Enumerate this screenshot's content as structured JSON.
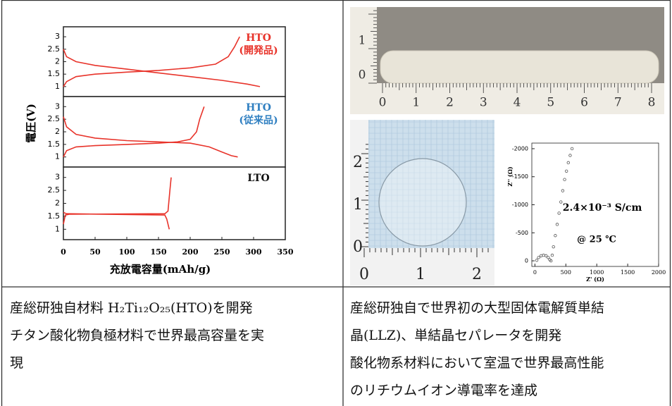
{
  "chart_data": [
    {
      "type": "line",
      "xlim": [
        0,
        350
      ],
      "ylim": [
        0.6,
        3.4
      ],
      "yticks": [
        1,
        1.5,
        2,
        2.5,
        3
      ],
      "annotation": [
        "HTO",
        "(開発品)"
      ],
      "annotation_color": "#e8332a",
      "series": [
        {
          "color": "#e8332a",
          "x": [
            0,
            5,
            20,
            50,
            100,
            150,
            200,
            240,
            260,
            270,
            278
          ],
          "values": [
            1.0,
            1.2,
            1.4,
            1.5,
            1.58,
            1.65,
            1.75,
            1.9,
            2.2,
            2.6,
            3.0
          ]
        },
        {
          "color": "#e8332a",
          "x": [
            0,
            5,
            20,
            50,
            100,
            150,
            200,
            250,
            290,
            310
          ],
          "values": [
            2.5,
            2.2,
            2.0,
            1.85,
            1.7,
            1.55,
            1.4,
            1.25,
            1.1,
            1.0
          ]
        }
      ]
    },
    {
      "type": "line",
      "xlim": [
        0,
        350
      ],
      "ylim": [
        0.6,
        3.4
      ],
      "yticks": [
        1,
        1.5,
        2,
        2.5,
        3
      ],
      "ylabel": "電圧(V)",
      "annotation": [
        "HTO",
        "(従来品)"
      ],
      "annotation_color": "#2f7fc1",
      "series": [
        {
          "color": "#e8332a",
          "x": [
            0,
            5,
            20,
            50,
            100,
            150,
            180,
            200,
            210,
            215,
            222
          ],
          "values": [
            1.0,
            1.25,
            1.4,
            1.45,
            1.5,
            1.55,
            1.6,
            1.7,
            2.0,
            2.5,
            3.0
          ]
        },
        {
          "color": "#e8332a",
          "x": [
            0,
            5,
            20,
            50,
            100,
            150,
            200,
            230,
            250,
            265,
            275
          ],
          "values": [
            2.6,
            2.2,
            1.9,
            1.75,
            1.65,
            1.6,
            1.55,
            1.4,
            1.2,
            1.05,
            1.0
          ]
        }
      ]
    },
    {
      "type": "line",
      "xlim": [
        0,
        350
      ],
      "ylim": [
        0.6,
        3.4
      ],
      "yticks": [
        1,
        1.5,
        2,
        2.5,
        3
      ],
      "xticks": [
        0,
        50,
        100,
        150,
        200,
        250,
        300,
        350
      ],
      "xlabel": "充放電容量(mAh/g)",
      "annotation": [
        "LTO"
      ],
      "annotation_color": "#111111",
      "series": [
        {
          "color": "#e8332a",
          "x": [
            0,
            3,
            10,
            160,
            165,
            168,
            170
          ],
          "values": [
            1.2,
            1.55,
            1.58,
            1.6,
            1.7,
            2.5,
            3.0
          ]
        },
        {
          "color": "#e8332a",
          "x": [
            0,
            5,
            160,
            163,
            167
          ],
          "values": [
            1.65,
            1.6,
            1.55,
            1.4,
            1.0
          ]
        }
      ]
    },
    {
      "type": "scatter",
      "xlim": [
        -50,
        2000
      ],
      "ylim": [
        100,
        -2100
      ],
      "xticks": [
        0,
        500,
        1000,
        1500,
        2000
      ],
      "yticks": [
        0,
        -500,
        -1000,
        -1500,
        -2000
      ],
      "xlabel": "Z' (Ω)",
      "ylabel": "Z'' (Ω)",
      "color": "#555555",
      "annotation": [
        "2.4×10⁻³ S/cm",
        "@ 25 ℃"
      ],
      "x": [
        30,
        60,
        100,
        140,
        180,
        215,
        240,
        260,
        280,
        300,
        330,
        360,
        390,
        420,
        450,
        480,
        510,
        540,
        570,
        600
      ],
      "values": [
        -10,
        -60,
        -90,
        -100,
        -90,
        -60,
        -20,
        0,
        -100,
        -250,
        -450,
        -650,
        -850,
        -1050,
        -1250,
        -1450,
        -1600,
        -1750,
        -1880,
        -2000
      ]
    }
  ],
  "photos": {
    "top_ruler": {
      "x_labels": [
        0,
        1,
        2,
        3,
        4,
        5,
        6,
        7,
        8
      ],
      "y_labels": [
        1,
        0
      ]
    },
    "bottom_ruler": {
      "x_labels": [
        0,
        1,
        2
      ],
      "y_labels": [
        2,
        1,
        0
      ]
    }
  },
  "captions": {
    "left": [
      "産総研独自材料 H₂Ti₁₂O₂₅(HTO)を開発",
      "チタン酸化物負極材料で世界最高容量を実",
      "現"
    ],
    "right": [
      "産総研独自で世界初の大型固体電解質単結",
      "晶(LLZ)、単結晶セパレータを開発",
      "酸化物系材料において室温で世界最高性能",
      "のリチウムイオン導電率を達成"
    ]
  }
}
